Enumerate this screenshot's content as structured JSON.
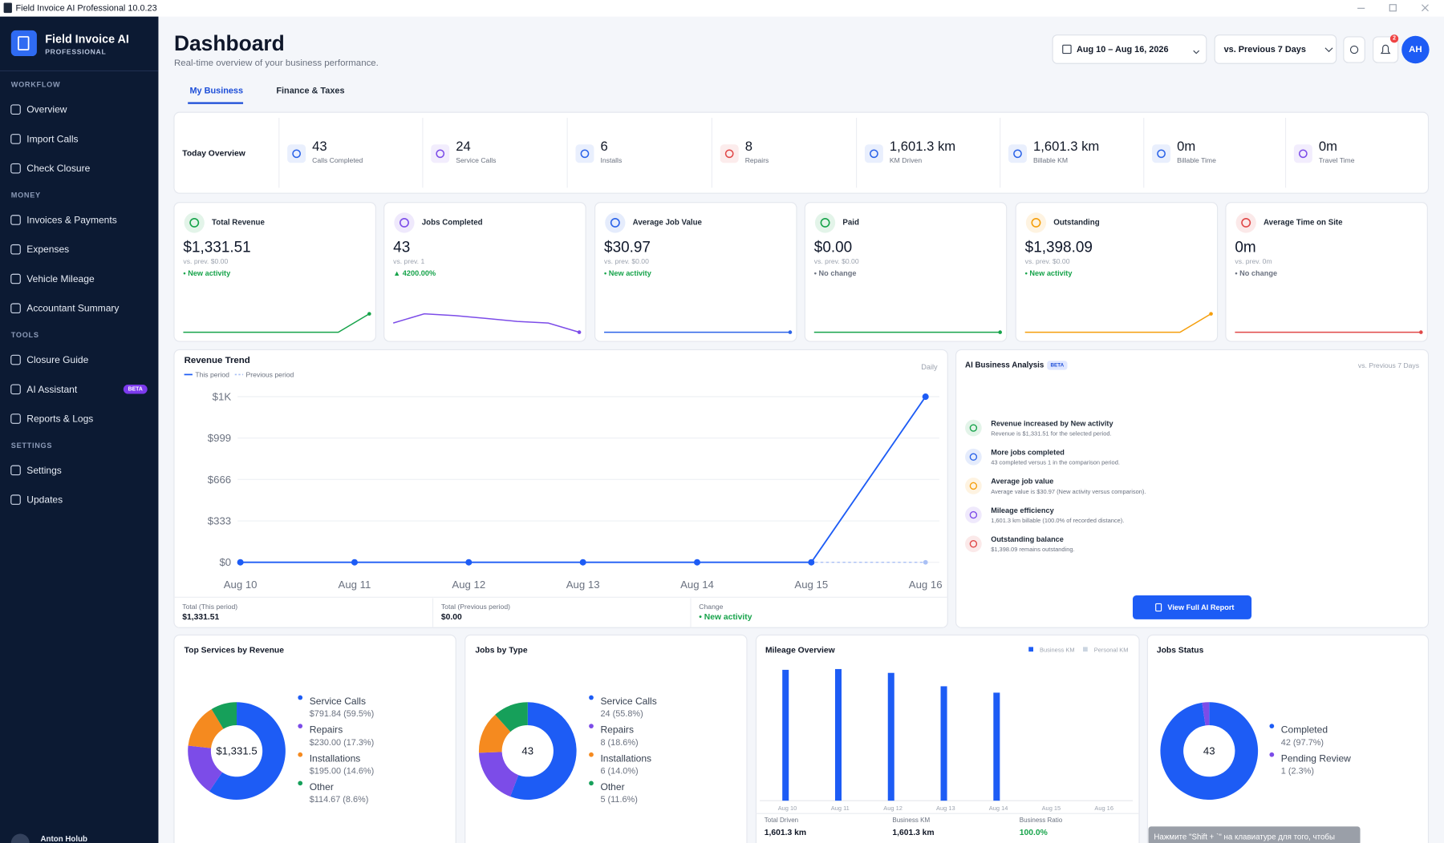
{
  "window": {
    "title": "Field Invoice AI Professional 10.0.23"
  },
  "sidebar": {
    "brand": "Field Invoice AI",
    "edition": "PROFESSIONAL",
    "sections": [
      {
        "heading": "WORKFLOW",
        "items": [
          {
            "label": "Overview"
          },
          {
            "label": "Import Calls"
          },
          {
            "label": "Check Closure"
          }
        ]
      },
      {
        "heading": "MONEY",
        "items": [
          {
            "label": "Invoices & Payments"
          },
          {
            "label": "Expenses"
          },
          {
            "label": "Vehicle Mileage"
          },
          {
            "label": "Accountant Summary"
          }
        ]
      },
      {
        "heading": "TOOLS",
        "items": [
          {
            "label": "Closure Guide"
          },
          {
            "label": "AI Assistant",
            "badge": "BETA"
          },
          {
            "label": "Reports & Logs"
          }
        ]
      },
      {
        "heading": "SETTINGS",
        "items": [
          {
            "label": "Settings"
          },
          {
            "label": "Updates"
          }
        ]
      }
    ],
    "user": "Anton Holub"
  },
  "header": {
    "title": "Dashboard",
    "subtitle": "Real-time overview of your business performance.",
    "date_range": "Aug 10 – Aug 16, 2026",
    "compare": "vs. Previous 7 Days",
    "notifications": "2",
    "avatar": "AH"
  },
  "tabs": [
    "My Business",
    "Finance & Taxes"
  ],
  "today": {
    "label": "Today Overview",
    "stats": [
      {
        "value": "43",
        "label": "Calls Completed",
        "color": "#2b63e8"
      },
      {
        "value": "24",
        "label": "Service Calls",
        "color": "#7c4ce8"
      },
      {
        "value": "6",
        "label": "Installs",
        "color": "#2b63e8"
      },
      {
        "value": "8",
        "label": "Repairs",
        "color": "#e04848"
      },
      {
        "value": "1,601.3 km",
        "label": "KM Driven",
        "color": "#2b63e8"
      },
      {
        "value": "1,601.3 km",
        "label": "Billable KM",
        "color": "#2b63e8"
      },
      {
        "value": "0m",
        "label": "Billable Time",
        "color": "#2b63e8"
      },
      {
        "value": "0m",
        "label": "Travel Time",
        "color": "#7c4ce8"
      }
    ]
  },
  "kpis": [
    {
      "label": "Total Revenue",
      "value": "$1,331.51",
      "previous": "vs. prev. $0.00",
      "change": "• New activity",
      "change_color": "#16a34a",
      "color": "#16a34a",
      "trend": [
        0,
        0,
        0,
        0,
        0,
        0,
        1331.51
      ]
    },
    {
      "label": "Jobs Completed",
      "value": "43",
      "previous": "vs. prev. 1",
      "change": "▲ 4200.00%",
      "change_color": "#16a34a",
      "color": "#7c4ce8",
      "trend": [
        5,
        9,
        8.2,
        7,
        5.7,
        5,
        1
      ]
    },
    {
      "label": "Average Job Value",
      "value": "$30.97",
      "previous": "vs. prev. $0.00",
      "change": "• New activity",
      "change_color": "#16a34a",
      "color": "#2b63e8",
      "trend": [
        0,
        0,
        0,
        0,
        0,
        0,
        0
      ]
    },
    {
      "label": "Paid",
      "value": "$0.00",
      "previous": "vs. prev. $0.00",
      "change": "• No change",
      "change_color": "#6b7280",
      "color": "#16a34a",
      "trend": [
        0,
        0,
        0,
        0,
        0,
        0,
        0
      ]
    },
    {
      "label": "Outstanding",
      "value": "$1,398.09",
      "previous": "vs. prev. $0.00",
      "change": "• New activity",
      "change_color": "#16a34a",
      "color": "#f59e0b",
      "trend": [
        0,
        0,
        0,
        0,
        0,
        0,
        1398.09
      ]
    },
    {
      "label": "Average Time on Site",
      "value": "0m",
      "previous": "vs. prev. 0m",
      "change": "• No change",
      "change_color": "#6b7280",
      "color": "#e04848",
      "trend": [
        0,
        0,
        0,
        0,
        0,
        0,
        0
      ]
    }
  ],
  "revenue_trend": {
    "title": "Revenue Trend",
    "frequency": "Daily",
    "x": [
      "Aug 10",
      "Aug 11",
      "Aug 12",
      "Aug 13",
      "Aug 14",
      "Aug 15",
      "Aug 16"
    ],
    "series": [
      {
        "name": "This period",
        "color": "#1d5cf5",
        "values": [
          0,
          0,
          0,
          0,
          0,
          0,
          1331.51
        ]
      },
      {
        "name": "Previous period",
        "color": "#a9c0f5",
        "values": [
          0,
          0,
          0,
          0,
          0,
          0,
          0
        ]
      }
    ],
    "ylim": [
      0,
      1332
    ],
    "yticks": [
      {
        "value": 0,
        "label": "$0"
      },
      {
        "value": 333,
        "label": "$333"
      },
      {
        "value": 666,
        "label": "$666"
      },
      {
        "value": 999,
        "label": "$999"
      },
      {
        "value": 1332,
        "label": "$1K"
      }
    ],
    "totals": [
      {
        "label": "Total (This period)",
        "value": "$1,331.51"
      },
      {
        "label": "Total (Previous period)",
        "value": "$0.00"
      },
      {
        "label": "Change",
        "value": "• New activity",
        "color": "#16a34a"
      }
    ]
  },
  "ai_analysis": {
    "title": "AI Business Analysis",
    "badge": "BETA",
    "compare": "vs. Previous 7 Days",
    "insights": [
      {
        "title": "Revenue increased by New activity",
        "text": "Revenue is $1,331.51 for the selected period.",
        "color": "#16a34a"
      },
      {
        "title": "More jobs completed",
        "text": "43 completed versus 1 in the comparison period.",
        "color": "#2b63e8"
      },
      {
        "title": "Average job value",
        "text": "Average value is $30.97 (New activity versus comparison).",
        "color": "#f59e0b"
      },
      {
        "title": "Mileage efficiency",
        "text": "1,601.3 km billable (100.0% of recorded distance).",
        "color": "#7c4ce8"
      },
      {
        "title": "Outstanding balance",
        "text": "$1,398.09 remains outstanding.",
        "color": "#e04848"
      }
    ],
    "button": "View Full AI Report"
  },
  "top_services": {
    "title": "Top Services by Revenue",
    "center": "$1,331.5",
    "items": [
      {
        "name": "Service Calls",
        "value": 791.84,
        "label": "$791.84 (59.5%)",
        "color": "#1d5cf5"
      },
      {
        "name": "Repairs",
        "value": 230,
        "label": "$230.00 (17.3%)",
        "color": "#7c4ce8"
      },
      {
        "name": "Installations",
        "value": 195,
        "label": "$195.00 (14.6%)",
        "color": "#f58a1f"
      },
      {
        "name": "Other",
        "value": 114.67,
        "label": "$114.67 (8.6%)",
        "color": "#16a05a"
      }
    ]
  },
  "jobs_by_type": {
    "title": "Jobs by Type",
    "center": "43",
    "items": [
      {
        "name": "Service Calls",
        "value": 24,
        "label": "24 (55.8%)",
        "color": "#1d5cf5"
      },
      {
        "name": "Repairs",
        "value": 8,
        "label": "8 (18.6%)",
        "color": "#7c4ce8"
      },
      {
        "name": "Installations",
        "value": 6,
        "label": "6 (14.0%)",
        "color": "#f58a1f"
      },
      {
        "name": "Other",
        "value": 5,
        "label": "5 (11.6%)",
        "color": "#16a05a"
      }
    ]
  },
  "mileage": {
    "title": "Mileage Overview",
    "x": [
      "Aug 10",
      "Aug 11",
      "Aug 12",
      "Aug 13",
      "Aug 14",
      "Aug 15",
      "Aug 16"
    ],
    "series": [
      {
        "name": "Business KM",
        "color": "#1d5cf5",
        "values": [
          342,
          344,
          334,
          299,
          282.3,
          0,
          0
        ]
      },
      {
        "name": "Personal KM",
        "color": "#cbd5e1",
        "values": [
          0,
          0,
          0,
          0,
          0,
          0,
          0
        ]
      }
    ],
    "footer": [
      {
        "label": "Total Driven",
        "value": "1,601.3 km"
      },
      {
        "label": "Business KM",
        "value": "1,601.3 km"
      },
      {
        "label": "Business Ratio",
        "value": "100.0%",
        "color": "#16a34a"
      }
    ]
  },
  "jobs_status": {
    "title": "Jobs Status",
    "center": "43",
    "items": [
      {
        "name": "Completed",
        "value": 42,
        "label": "42 (97.7%)",
        "color": "#1d5cf5"
      },
      {
        "name": "Pending Review",
        "value": 1,
        "label": "1 (2.3%)",
        "color": "#7c4ce8"
      }
    ]
  },
  "toast": "Нажмите \"Shift + `\" на клавиатуре для того, чтобы"
}
